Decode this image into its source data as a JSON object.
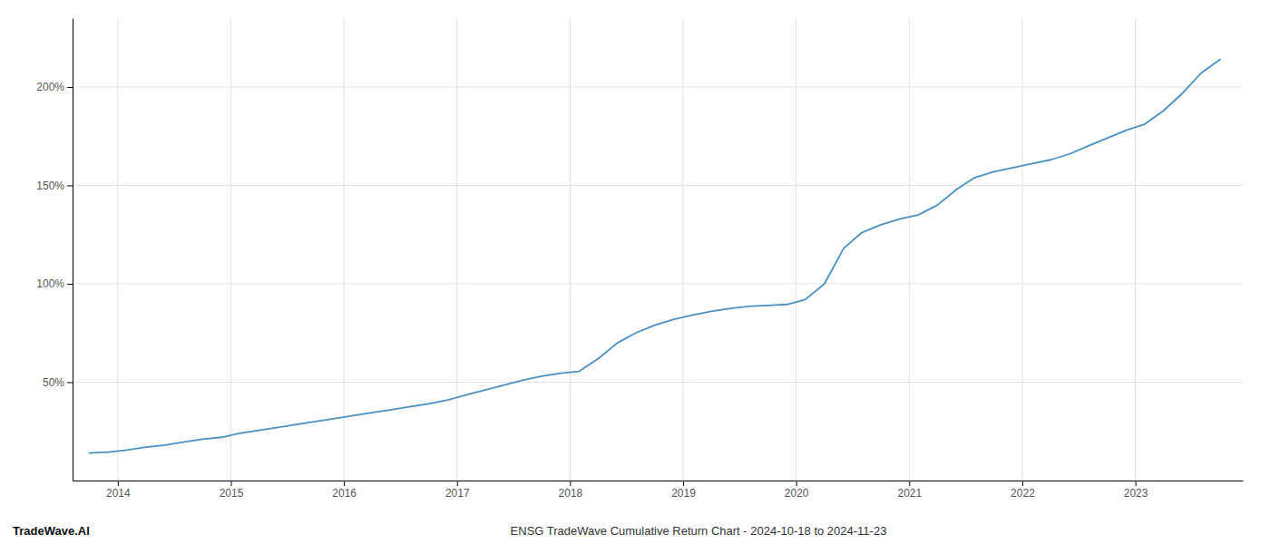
{
  "chart_data": {
    "type": "line",
    "title": "ENSG TradeWave Cumulative Return Chart - 2024-10-18 to 2024-11-23",
    "annotations": [
      "TradeWave.AI"
    ],
    "color": "#4a90c4",
    "x": [
      2013.75,
      2013.92,
      2014.08,
      2014.25,
      2014.42,
      2014.58,
      2014.75,
      2014.92,
      2015.08,
      2015.25,
      2015.42,
      2015.58,
      2015.75,
      2015.92,
      2016.08,
      2016.25,
      2016.42,
      2016.58,
      2016.75,
      2016.92,
      2017.08,
      2017.25,
      2017.42,
      2017.58,
      2017.75,
      2017.92,
      2018.08,
      2018.25,
      2018.42,
      2018.58,
      2018.75,
      2018.92,
      2019.08,
      2019.25,
      2019.42,
      2019.58,
      2019.75,
      2019.92,
      2020.08,
      2020.25,
      2020.42,
      2020.58,
      2020.75,
      2020.92,
      2021.08,
      2021.25,
      2021.42,
      2021.58,
      2021.75,
      2021.92,
      2022.08,
      2022.25,
      2022.42,
      2022.58,
      2022.75,
      2022.92,
      2023.08,
      2023.25,
      2023.42,
      2023.58,
      2023.75
    ],
    "values": [
      14,
      14.5,
      15.5,
      17,
      18,
      19.5,
      21,
      22,
      24,
      25.5,
      27,
      28.5,
      30,
      31.5,
      33,
      34.5,
      36,
      37.5,
      39,
      41,
      43.5,
      46,
      48.5,
      51,
      53,
      54.5,
      55.5,
      62,
      70,
      75,
      79,
      82,
      84,
      86,
      87.5,
      88.5,
      89,
      89.5,
      92,
      100,
      118,
      126,
      130,
      133,
      135,
      140,
      148,
      154,
      157,
      159,
      161,
      163,
      166,
      170,
      174,
      178,
      181,
      188,
      197,
      207,
      214
    ],
    "xlim": [
      2013.6,
      2023.95
    ],
    "xticks": [
      2014,
      2015,
      2016,
      2017,
      2018,
      2019,
      2020,
      2021,
      2022,
      2023
    ],
    "ylim": [
      0,
      235
    ],
    "yticks": [
      {
        "value": 50,
        "label": "50%"
      },
      {
        "value": 100,
        "label": "100%"
      },
      {
        "value": 150,
        "label": "150%"
      },
      {
        "value": 200,
        "label": "200%"
      }
    ],
    "grid": true
  }
}
